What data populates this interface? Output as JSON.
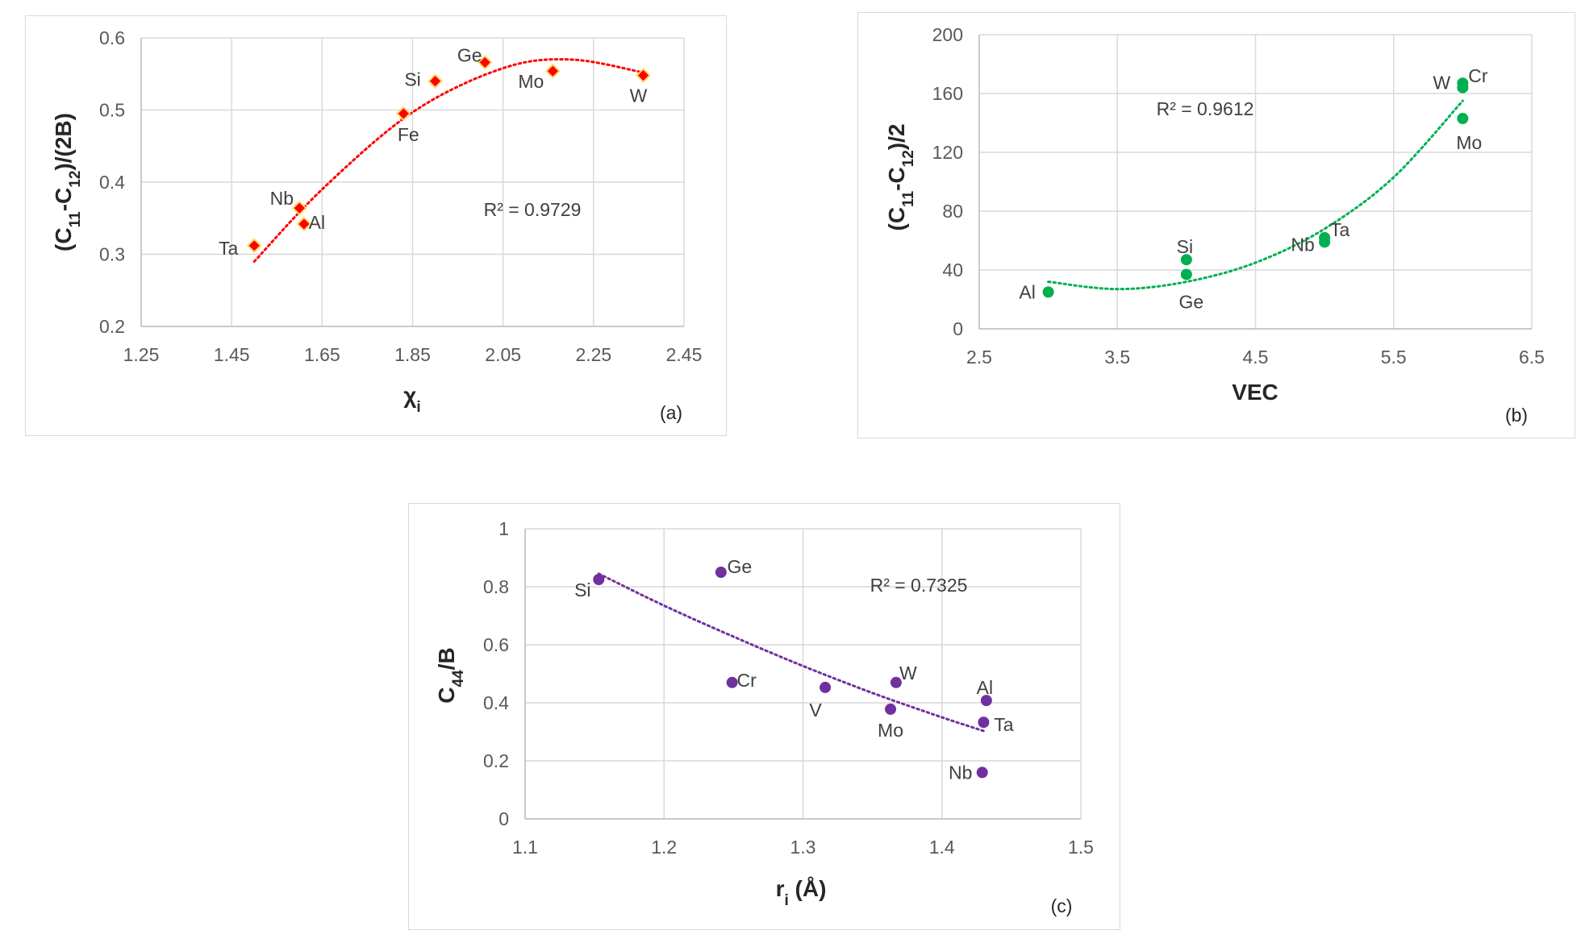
{
  "chart_data": [
    {
      "type": "scatter",
      "panel": "(a)",
      "xlabel": "χi",
      "ylabel": "(C11-C12)/(2B)",
      "xlim": [
        1.25,
        2.45
      ],
      "ylim": [
        0.2,
        0.6
      ],
      "xticks": [
        "1.25",
        "1.45",
        "1.65",
        "1.85",
        "2.05",
        "2.25",
        "2.45"
      ],
      "yticks": [
        "0.2",
        "0.3",
        "0.4",
        "0.5",
        "0.6"
      ],
      "marker": "diamond",
      "color": "#ff0000",
      "marker_edge": "#ffd966",
      "points": [
        {
          "label": "Ta",
          "x": 1.5,
          "y": 0.312
        },
        {
          "label": "Nb",
          "x": 1.6,
          "y": 0.364
        },
        {
          "label": "Al",
          "x": 1.61,
          "y": 0.342
        },
        {
          "label": "Fe",
          "x": 1.83,
          "y": 0.495
        },
        {
          "label": "Si",
          "x": 1.9,
          "y": 0.54
        },
        {
          "label": "Ge",
          "x": 2.01,
          "y": 0.566
        },
        {
          "label": "Mo",
          "x": 2.16,
          "y": 0.554
        },
        {
          "label": "W",
          "x": 2.36,
          "y": 0.548
        }
      ],
      "trendline": {
        "type": "polynomial-2",
        "x_range": [
          1.5,
          2.36
        ],
        "samples": [
          [
            1.5,
            0.29
          ],
          [
            1.65,
            0.39
          ],
          [
            1.85,
            0.497
          ],
          [
            2.05,
            0.558
          ],
          [
            2.2,
            0.57
          ],
          [
            2.36,
            0.552
          ]
        ]
      },
      "r2": "R² = 0.9729"
    },
    {
      "type": "scatter",
      "panel": "(b)",
      "xlabel": "VEC",
      "ylabel": "(C11-C12)/2",
      "xlim": [
        2.5,
        6.5
      ],
      "ylim": [
        0,
        200
      ],
      "xticks": [
        "2.5",
        "3.5",
        "4.5",
        "5.5",
        "6.5"
      ],
      "yticks": [
        "0",
        "40",
        "80",
        "120",
        "160",
        "200"
      ],
      "marker": "circle",
      "color": "#00b050",
      "points": [
        {
          "label": "Al",
          "x": 3.0,
          "y": 25
        },
        {
          "label": "Si",
          "x": 4.0,
          "y": 47
        },
        {
          "label": "Ge",
          "x": 4.0,
          "y": 37
        },
        {
          "label": "Nb",
          "x": 5.0,
          "y": 59
        },
        {
          "label": "Ta",
          "x": 5.0,
          "y": 62
        },
        {
          "label": "W",
          "x": 6.0,
          "y": 164
        },
        {
          "label": "Cr",
          "x": 6.0,
          "y": 167
        },
        {
          "label": "Mo",
          "x": 6.0,
          "y": 143
        }
      ],
      "trendline": {
        "type": "polynomial-2",
        "x_range": [
          3.0,
          6.0
        ],
        "samples": [
          [
            3.0,
            32
          ],
          [
            3.5,
            27
          ],
          [
            4.0,
            32
          ],
          [
            4.5,
            45
          ],
          [
            5.0,
            68
          ],
          [
            5.5,
            103
          ],
          [
            6.0,
            155
          ]
        ]
      },
      "r2": "R² = 0.9612"
    },
    {
      "type": "scatter",
      "panel": "(c)",
      "xlabel": "ri (Å)",
      "ylabel": "C44/B",
      "xlim": [
        1.1,
        1.5
      ],
      "ylim": [
        0,
        1
      ],
      "xticks": [
        "1.1",
        "1.2",
        "1.3",
        "1.4",
        "1.5"
      ],
      "yticks": [
        "0",
        "0.2",
        "0.4",
        "0.6",
        "0.8",
        "1"
      ],
      "marker": "circle",
      "color": "#7030a0",
      "points": [
        {
          "label": "Si",
          "x": 1.153,
          "y": 0.825
        },
        {
          "label": "Ge",
          "x": 1.241,
          "y": 0.85
        },
        {
          "label": "Cr",
          "x": 1.249,
          "y": 0.47
        },
        {
          "label": "V",
          "x": 1.316,
          "y": 0.453
        },
        {
          "label": "Mo",
          "x": 1.363,
          "y": 0.378
        },
        {
          "label": "W",
          "x": 1.367,
          "y": 0.47
        },
        {
          "label": "Al",
          "x": 1.432,
          "y": 0.408
        },
        {
          "label": "Ta",
          "x": 1.43,
          "y": 0.333
        },
        {
          "label": "Nb",
          "x": 1.429,
          "y": 0.16
        }
      ],
      "trendline": {
        "type": "polynomial-2",
        "x_range": [
          1.153,
          1.432
        ],
        "samples": [
          [
            1.153,
            0.845
          ],
          [
            1.2,
            0.735
          ],
          [
            1.25,
            0.628
          ],
          [
            1.3,
            0.527
          ],
          [
            1.35,
            0.434
          ],
          [
            1.4,
            0.35
          ],
          [
            1.432,
            0.3
          ]
        ]
      },
      "r2": "R² = 0.7325"
    }
  ]
}
